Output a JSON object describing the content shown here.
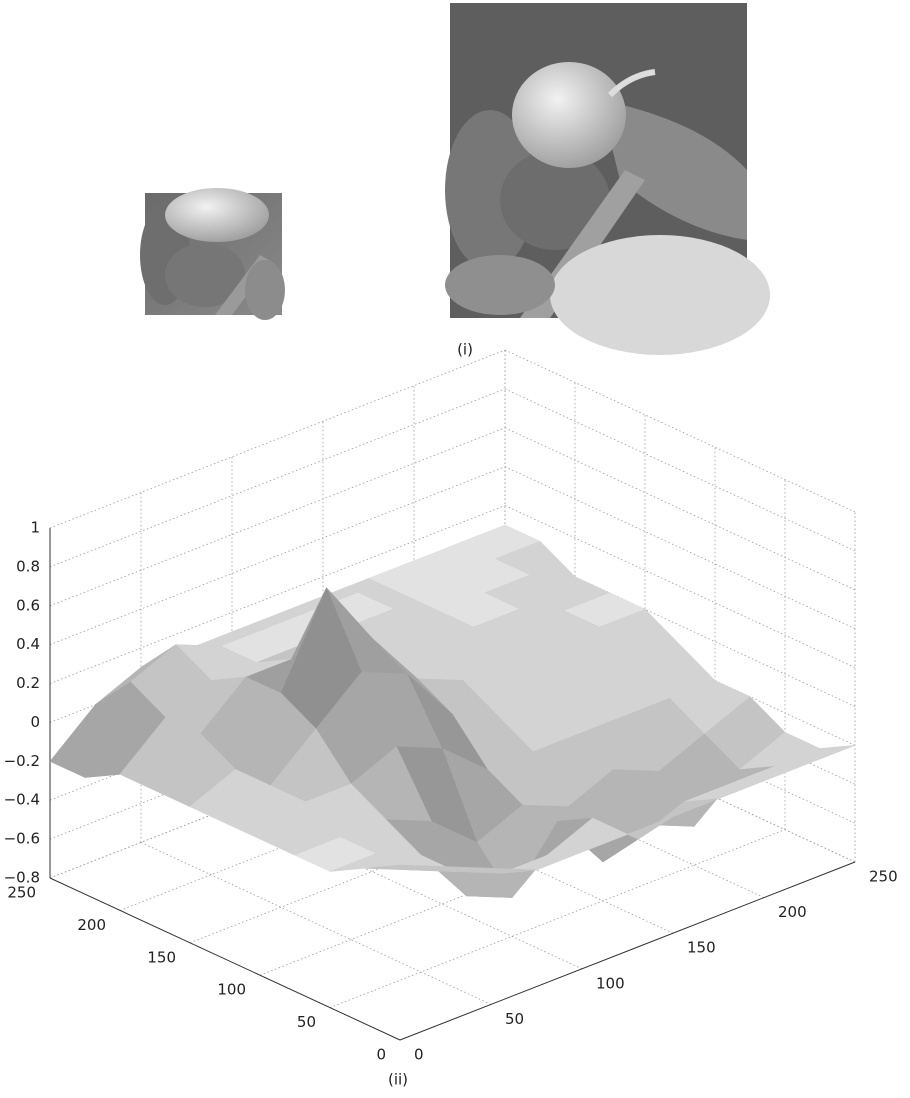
{
  "figure": {
    "label_i": "(i)",
    "label_ii": "(ii)"
  },
  "chart_data": {
    "type": "surface",
    "x": [
      0,
      25,
      50,
      75,
      100,
      125,
      150,
      175,
      200,
      225,
      250
    ],
    "y": [
      0,
      25,
      50,
      75,
      100,
      125,
      150,
      175,
      200,
      225,
      250
    ],
    "z": [
      [
        0.1,
        0.0,
        -0.1,
        -0.2,
        -0.2,
        -0.2,
        -0.2,
        -0.2,
        -0.2,
        -0.2,
        -0.2
      ],
      [
        0.0,
        -0.1,
        -0.2,
        -0.3,
        -0.3,
        -0.2,
        -0.4,
        -0.3,
        -0.3,
        -0.3,
        -0.3
      ],
      [
        -0.1,
        -0.1,
        -0.2,
        -0.5,
        -0.6,
        -0.3,
        -0.6,
        -0.5,
        -0.6,
        -0.4,
        -0.3
      ],
      [
        -0.1,
        -0.1,
        -0.1,
        -0.2,
        -0.4,
        -0.3,
        -0.4,
        -0.3,
        -0.4,
        -0.3,
        -0.2
      ],
      [
        -0.1,
        0.0,
        0.0,
        0.1,
        0.0,
        -0.2,
        -0.2,
        -0.2,
        -0.2,
        -0.2,
        -0.2
      ],
      [
        -0.1,
        0.0,
        0.2,
        0.4,
        0.3,
        0.0,
        -0.1,
        -0.1,
        -0.1,
        -0.1,
        -0.1
      ],
      [
        -0.1,
        0.0,
        0.3,
        0.75,
        0.4,
        0.1,
        0.0,
        0.0,
        0.0,
        0.0,
        0.0
      ],
      [
        -0.1,
        0.1,
        0.3,
        0.3,
        0.1,
        0.1,
        0.1,
        0.1,
        0.1,
        0.0,
        0.0
      ],
      [
        -0.1,
        0.1,
        0.2,
        0.2,
        0.2,
        0.2,
        0.2,
        0.1,
        0.1,
        0.1,
        0.0
      ],
      [
        -0.2,
        0.2,
        0.3,
        0.2,
        0.2,
        0.2,
        0.2,
        0.1,
        0.1,
        0.1,
        0.1
      ],
      [
        -0.2,
        0.0,
        0.1,
        0.1,
        0.1,
        0.1,
        0.1,
        0.1,
        0.1,
        0.1,
        0.1
      ]
    ],
    "xlim": [
      0,
      250
    ],
    "ylim": [
      0,
      250
    ],
    "zlim": [
      -0.8,
      1
    ],
    "xticks": [
      0,
      50,
      100,
      150,
      200,
      250
    ],
    "yticks": [
      0,
      50,
      100,
      150,
      200,
      250
    ],
    "zticks": [
      {
        "value": -0.8,
        "label": "−0.8"
      },
      {
        "value": -0.6,
        "label": "−0.6"
      },
      {
        "value": -0.4,
        "label": "−0.4"
      },
      {
        "value": -0.2,
        "label": "−0.2"
      },
      0,
      0.2,
      0.4,
      0.6,
      0.8,
      1
    ],
    "grid": true
  }
}
